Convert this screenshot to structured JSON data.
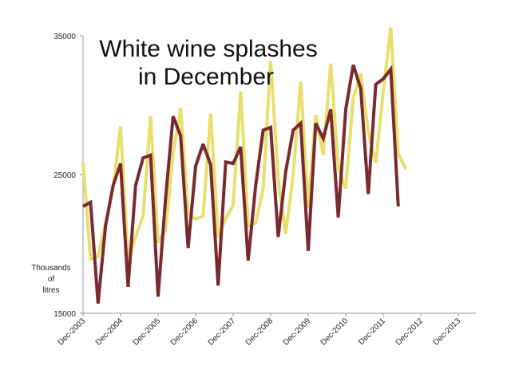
{
  "chart_data": {
    "type": "line",
    "title_lines": [
      "White wine splashes",
      "in December"
    ],
    "ylabel_lines": [
      "Thousands",
      "of",
      "litres"
    ],
    "xlabel": "",
    "ylim": [
      15000,
      35000
    ],
    "y_ticks": [
      15000,
      25000,
      35000
    ],
    "x_tick_labels": [
      "Dec-2003",
      "Dec-2004",
      "Dec-2005",
      "Dec-2006",
      "Dec-2007",
      "Dec-2008",
      "Dec-2009",
      "Dec-2010",
      "Dec-2011",
      "Dec-2012",
      "Dec-2013"
    ],
    "x_tick_index": [
      0,
      5,
      10,
      15,
      20,
      25,
      30,
      35,
      40,
      45,
      50
    ],
    "grid": false,
    "legend": "none",
    "series": [
      {
        "color": "#e8df6e",
        "values": [
          25900,
          18900,
          19100,
          21500,
          24000,
          28500,
          18800,
          20500,
          22000,
          29200,
          20100,
          21000,
          26500,
          29800,
          22200,
          21800,
          22000,
          29400,
          20500,
          21800,
          22800,
          31000,
          21300,
          21500,
          24000,
          33200,
          24700,
          20700,
          25000,
          31700,
          22600,
          29300,
          26400,
          33000,
          25500,
          24000,
          30500,
          32300,
          28100,
          25800,
          31000,
          35600,
          26500,
          25400
        ]
      },
      {
        "color": "#7a2a2e",
        "values": [
          22700,
          23000,
          15700,
          21300,
          24200,
          25800,
          16900,
          24200,
          26200,
          26400,
          16200,
          23300,
          29200,
          27800,
          19700,
          25600,
          27200,
          25700,
          17000,
          25900,
          25800,
          27000,
          18800,
          24200,
          28200,
          28400,
          20500,
          25200,
          28200,
          28700,
          19500,
          28700,
          27600,
          29700,
          21900,
          29700,
          32900,
          31200,
          23600,
          31500,
          31900,
          32600,
          22700
        ]
      }
    ]
  }
}
